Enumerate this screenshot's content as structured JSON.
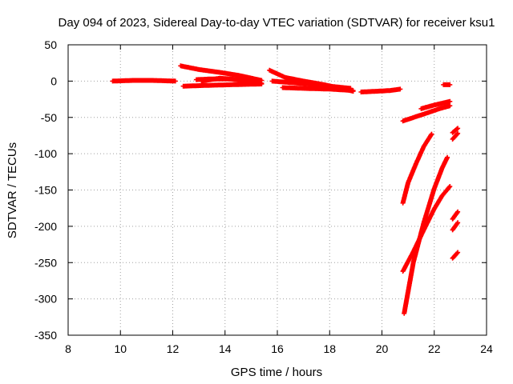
{
  "chart_data": {
    "type": "scatter",
    "title": "Day 094 of 2023, Sidereal Day-to-day VTEC variation (SDTVAR) for receiver ksu1",
    "xlabel": "GPS time / hours",
    "ylabel": "SDTVAR / TECUs",
    "xlim": [
      8,
      24
    ],
    "ylim": [
      -350,
      50
    ],
    "xticks": [
      "8",
      "10",
      "12",
      "14",
      "16",
      "18",
      "20",
      "22",
      "24"
    ],
    "yticks": [
      "50",
      "0",
      "-50",
      "-100",
      "-150",
      "-200",
      "-250",
      "-300",
      "-350"
    ],
    "grid": true,
    "marker": "plus",
    "color": "#ff0000",
    "series": [
      {
        "points": [
          [
            9.7,
            0
          ],
          [
            10.5,
            1
          ],
          [
            11.2,
            1
          ],
          [
            12.1,
            0
          ]
        ]
      },
      {
        "points": [
          [
            12.3,
            21
          ],
          [
            13.0,
            16
          ],
          [
            13.8,
            12
          ],
          [
            14.5,
            8
          ],
          [
            15.4,
            1
          ]
        ]
      },
      {
        "points": [
          [
            12.4,
            -7
          ],
          [
            13.2,
            -6
          ],
          [
            14.2,
            -5
          ],
          [
            15.4,
            -4
          ]
        ]
      },
      {
        "points": [
          [
            12.9,
            2
          ],
          [
            13.5,
            3
          ],
          [
            14.2,
            3
          ],
          [
            14.8,
            0
          ],
          [
            15.4,
            -3
          ]
        ]
      },
      {
        "points": [
          [
            13.1,
            0
          ],
          [
            13.8,
            4
          ],
          [
            14.5,
            2
          ],
          [
            15.2,
            -1
          ]
        ]
      },
      {
        "points": [
          [
            15.7,
            15
          ],
          [
            16.3,
            5
          ],
          [
            17.0,
            0
          ],
          [
            17.8,
            -5
          ],
          [
            18.9,
            -14
          ]
        ]
      },
      {
        "points": [
          [
            15.8,
            0
          ],
          [
            16.5,
            -2
          ],
          [
            17.2,
            -4
          ],
          [
            18.0,
            -7
          ],
          [
            18.8,
            -10
          ]
        ]
      },
      {
        "points": [
          [
            16.2,
            -9
          ],
          [
            17.0,
            -10
          ],
          [
            18.0,
            -11
          ],
          [
            18.9,
            -13
          ]
        ]
      },
      {
        "points": [
          [
            19.2,
            -15
          ],
          [
            19.8,
            -14
          ],
          [
            20.3,
            -13
          ],
          [
            20.7,
            -11
          ]
        ]
      },
      {
        "points": [
          [
            20.8,
            -55
          ],
          [
            21.3,
            -49
          ],
          [
            21.8,
            -43
          ],
          [
            22.2,
            -38
          ],
          [
            22.6,
            -34
          ]
        ]
      },
      {
        "points": [
          [
            21.5,
            -38
          ],
          [
            22.0,
            -33
          ],
          [
            22.6,
            -28
          ]
        ]
      },
      {
        "points": [
          [
            22.35,
            -5
          ],
          [
            22.6,
            -5
          ]
        ]
      },
      {
        "points": [
          [
            20.8,
            -168
          ],
          [
            21.0,
            -140
          ],
          [
            21.3,
            -114
          ],
          [
            21.6,
            -90
          ],
          [
            21.9,
            -73
          ]
        ]
      },
      {
        "points": [
          [
            20.8,
            -262
          ],
          [
            21.2,
            -235
          ],
          [
            21.6,
            -205
          ],
          [
            22.0,
            -176
          ],
          [
            22.3,
            -158
          ],
          [
            22.6,
            -145
          ]
        ]
      },
      {
        "points": [
          [
            20.85,
            -320
          ],
          [
            21.2,
            -250
          ],
          [
            21.6,
            -195
          ],
          [
            22.0,
            -148
          ],
          [
            22.3,
            -120
          ],
          [
            22.5,
            -105
          ]
        ]
      },
      {
        "points": [
          [
            22.7,
            -80
          ],
          [
            22.9,
            -72
          ]
        ]
      },
      {
        "points": [
          [
            22.7,
            -71
          ],
          [
            22.9,
            -65
          ]
        ]
      },
      {
        "points": [
          [
            22.7,
            -190
          ],
          [
            22.9,
            -180
          ]
        ]
      },
      {
        "points": [
          [
            22.7,
            -205
          ],
          [
            22.9,
            -195
          ]
        ]
      },
      {
        "points": [
          [
            22.7,
            -244
          ],
          [
            22.9,
            -236
          ]
        ]
      }
    ]
  }
}
